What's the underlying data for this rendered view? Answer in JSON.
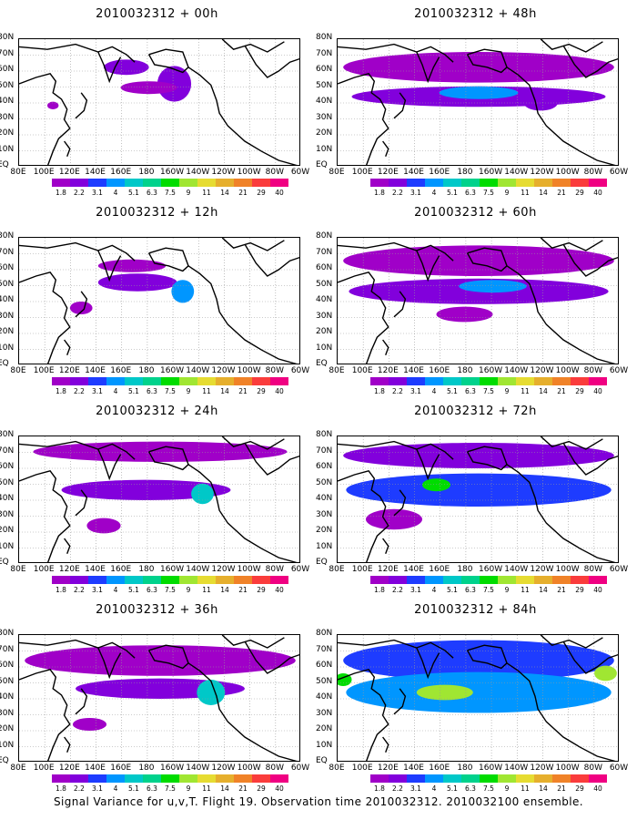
{
  "panels": [
    {
      "title": "2010032312 + 00h",
      "intensity": 0.1
    },
    {
      "title": "2010032312 + 48h",
      "intensity": 0.45
    },
    {
      "title": "2010032312 + 12h",
      "intensity": 0.18
    },
    {
      "title": "2010032312 + 60h",
      "intensity": 0.55
    },
    {
      "title": "2010032312 + 24h",
      "intensity": 0.25
    },
    {
      "title": "2010032312 + 72h",
      "intensity": 0.65
    },
    {
      "title": "2010032312 + 36h",
      "intensity": 0.35
    },
    {
      "title": "2010032312 + 84h",
      "intensity": 0.8
    }
  ],
  "lat_labels": [
    "80N",
    "70N",
    "60N",
    "50N",
    "40N",
    "30N",
    "20N",
    "10N",
    "EQ"
  ],
  "lon_labels": [
    "80E",
    "100E",
    "120E",
    "140E",
    "160E",
    "180",
    "160W",
    "140W",
    "120W",
    "100W",
    "80W",
    "60W"
  ],
  "colorbar": {
    "labels": [
      "1.8",
      "2.2",
      "3.1",
      "4",
      "5.1",
      "6.3",
      "7.5",
      "9",
      "11",
      "14",
      "21",
      "29",
      "40"
    ],
    "colors": [
      "#a000c8",
      "#8200dc",
      "#1e3cff",
      "#0096ff",
      "#00c8c8",
      "#00d28c",
      "#00dc00",
      "#a0e632",
      "#e6dc32",
      "#e6af2d",
      "#f08228",
      "#fa3c3c",
      "#f00082"
    ]
  },
  "footer": "Signal Variance for u,v,T. Flight 19. Observation time 2010032312. 2010032100 ensemble."
}
